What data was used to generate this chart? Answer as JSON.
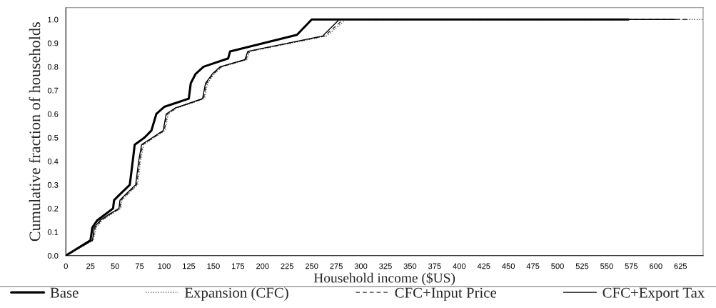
{
  "chart_data": {
    "type": "line",
    "xlabel": "Household income ($US)",
    "ylabel": "Cumulative fraction of households",
    "xlim": [
      0,
      648
    ],
    "ylim": [
      0,
      1.05
    ],
    "xticks": [
      0,
      25,
      50,
      75,
      100,
      125,
      150,
      175,
      200,
      225,
      250,
      275,
      300,
      325,
      350,
      375,
      400,
      425,
      450,
      475,
      500,
      525,
      550,
      575,
      600,
      625
    ],
    "yticks": [
      {
        "value": 0,
        "label": "0.0"
      },
      0.1,
      0.2,
      0.3,
      0.4,
      0.5,
      0.6,
      0.7,
      0.8,
      0.9,
      {
        "value": 1,
        "label": "1.0"
      }
    ],
    "grid": false,
    "legend": "bottom",
    "series": [
      {
        "name": "Base",
        "color": "#000000",
        "line_style": "solid",
        "x": [
          0,
          25,
          27,
          32,
          40,
          48,
          49,
          55,
          65,
          68,
          70,
          80,
          87,
          92,
          100,
          125,
          127,
          132,
          140,
          165,
          167,
          235,
          250,
          572
        ],
        "values": [
          0,
          0.065,
          0.12,
          0.15,
          0.175,
          0.2,
          0.235,
          0.26,
          0.3,
          0.4,
          0.47,
          0.5,
          0.53,
          0.6,
          0.63,
          0.665,
          0.73,
          0.77,
          0.8,
          0.835,
          0.865,
          0.935,
          1.0,
          1.0
        ]
      },
      {
        "name": "Expansion (CFC)",
        "color": "#555555",
        "line_style": "dotted",
        "x": [
          0,
          28,
          31,
          37,
          46,
          56,
          57,
          63,
          73,
          76,
          79,
          90,
          101,
          104,
          113,
          141,
          144,
          151,
          159,
          184,
          187,
          265,
          285,
          648
        ],
        "values": [
          0,
          0.065,
          0.12,
          0.15,
          0.175,
          0.2,
          0.235,
          0.26,
          0.3,
          0.4,
          0.47,
          0.5,
          0.53,
          0.6,
          0.625,
          0.665,
          0.73,
          0.77,
          0.8,
          0.83,
          0.865,
          0.93,
          1.0,
          1.0
        ]
      },
      {
        "name": "CFC+Input Price",
        "color": "#333333",
        "line_style": "dashed",
        "x": [
          0,
          27,
          30,
          36,
          45,
          55,
          56,
          62,
          72,
          75,
          78,
          89,
          100,
          103,
          112,
          140,
          143,
          150,
          158,
          183,
          186,
          263,
          282,
          635
        ],
        "values": [
          0,
          0.065,
          0.12,
          0.15,
          0.175,
          0.2,
          0.235,
          0.26,
          0.3,
          0.4,
          0.47,
          0.5,
          0.53,
          0.6,
          0.625,
          0.665,
          0.73,
          0.77,
          0.8,
          0.83,
          0.865,
          0.93,
          1.0,
          1.0
        ]
      },
      {
        "name": "CFC+Export Tax",
        "color": "#000000",
        "line_style": "solid",
        "x": [
          0,
          27,
          29,
          35,
          44,
          54,
          55,
          61,
          71,
          74,
          77,
          88,
          99,
          102,
          111,
          139,
          142,
          149,
          157,
          182,
          185,
          261,
          278,
          620
        ],
        "values": [
          0,
          0.065,
          0.12,
          0.15,
          0.175,
          0.2,
          0.235,
          0.26,
          0.3,
          0.4,
          0.47,
          0.5,
          0.53,
          0.6,
          0.625,
          0.665,
          0.73,
          0.77,
          0.8,
          0.83,
          0.865,
          0.93,
          1.0,
          1.0
        ]
      }
    ]
  }
}
